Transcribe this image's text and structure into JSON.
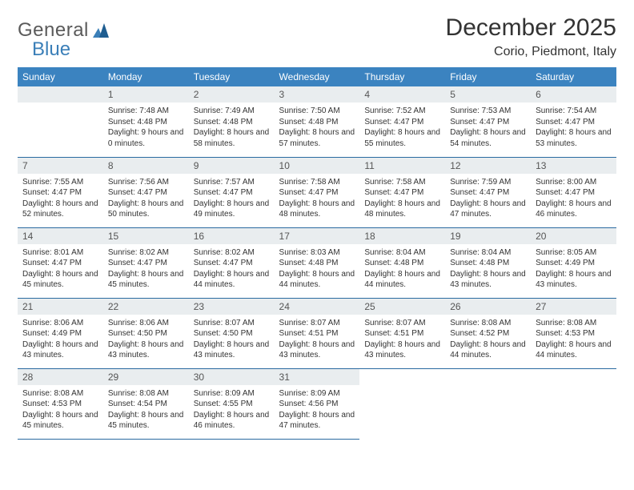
{
  "logo": {
    "general": "General",
    "blue": "Blue"
  },
  "title": "December 2025",
  "location": "Corio, Piedmont, Italy",
  "header_bg": "#3b83c0",
  "header_fg": "#ffffff",
  "daynum_bg": "#e9edef",
  "rule_color": "#2a6aa0",
  "weekdays": [
    "Sunday",
    "Monday",
    "Tuesday",
    "Wednesday",
    "Thursday",
    "Friday",
    "Saturday"
  ],
  "first_weekday_index": 1,
  "days": [
    {
      "n": 1,
      "sunrise": "7:48 AM",
      "sunset": "4:48 PM",
      "daylight": "9 hours and 0 minutes."
    },
    {
      "n": 2,
      "sunrise": "7:49 AM",
      "sunset": "4:48 PM",
      "daylight": "8 hours and 58 minutes."
    },
    {
      "n": 3,
      "sunrise": "7:50 AM",
      "sunset": "4:48 PM",
      "daylight": "8 hours and 57 minutes."
    },
    {
      "n": 4,
      "sunrise": "7:52 AM",
      "sunset": "4:47 PM",
      "daylight": "8 hours and 55 minutes."
    },
    {
      "n": 5,
      "sunrise": "7:53 AM",
      "sunset": "4:47 PM",
      "daylight": "8 hours and 54 minutes."
    },
    {
      "n": 6,
      "sunrise": "7:54 AM",
      "sunset": "4:47 PM",
      "daylight": "8 hours and 53 minutes."
    },
    {
      "n": 7,
      "sunrise": "7:55 AM",
      "sunset": "4:47 PM",
      "daylight": "8 hours and 52 minutes."
    },
    {
      "n": 8,
      "sunrise": "7:56 AM",
      "sunset": "4:47 PM",
      "daylight": "8 hours and 50 minutes."
    },
    {
      "n": 9,
      "sunrise": "7:57 AM",
      "sunset": "4:47 PM",
      "daylight": "8 hours and 49 minutes."
    },
    {
      "n": 10,
      "sunrise": "7:58 AM",
      "sunset": "4:47 PM",
      "daylight": "8 hours and 48 minutes."
    },
    {
      "n": 11,
      "sunrise": "7:58 AM",
      "sunset": "4:47 PM",
      "daylight": "8 hours and 48 minutes."
    },
    {
      "n": 12,
      "sunrise": "7:59 AM",
      "sunset": "4:47 PM",
      "daylight": "8 hours and 47 minutes."
    },
    {
      "n": 13,
      "sunrise": "8:00 AM",
      "sunset": "4:47 PM",
      "daylight": "8 hours and 46 minutes."
    },
    {
      "n": 14,
      "sunrise": "8:01 AM",
      "sunset": "4:47 PM",
      "daylight": "8 hours and 45 minutes."
    },
    {
      "n": 15,
      "sunrise": "8:02 AM",
      "sunset": "4:47 PM",
      "daylight": "8 hours and 45 minutes."
    },
    {
      "n": 16,
      "sunrise": "8:02 AM",
      "sunset": "4:47 PM",
      "daylight": "8 hours and 44 minutes."
    },
    {
      "n": 17,
      "sunrise": "8:03 AM",
      "sunset": "4:48 PM",
      "daylight": "8 hours and 44 minutes."
    },
    {
      "n": 18,
      "sunrise": "8:04 AM",
      "sunset": "4:48 PM",
      "daylight": "8 hours and 44 minutes."
    },
    {
      "n": 19,
      "sunrise": "8:04 AM",
      "sunset": "4:48 PM",
      "daylight": "8 hours and 43 minutes."
    },
    {
      "n": 20,
      "sunrise": "8:05 AM",
      "sunset": "4:49 PM",
      "daylight": "8 hours and 43 minutes."
    },
    {
      "n": 21,
      "sunrise": "8:06 AM",
      "sunset": "4:49 PM",
      "daylight": "8 hours and 43 minutes."
    },
    {
      "n": 22,
      "sunrise": "8:06 AM",
      "sunset": "4:50 PM",
      "daylight": "8 hours and 43 minutes."
    },
    {
      "n": 23,
      "sunrise": "8:07 AM",
      "sunset": "4:50 PM",
      "daylight": "8 hours and 43 minutes."
    },
    {
      "n": 24,
      "sunrise": "8:07 AM",
      "sunset": "4:51 PM",
      "daylight": "8 hours and 43 minutes."
    },
    {
      "n": 25,
      "sunrise": "8:07 AM",
      "sunset": "4:51 PM",
      "daylight": "8 hours and 43 minutes."
    },
    {
      "n": 26,
      "sunrise": "8:08 AM",
      "sunset": "4:52 PM",
      "daylight": "8 hours and 44 minutes."
    },
    {
      "n": 27,
      "sunrise": "8:08 AM",
      "sunset": "4:53 PM",
      "daylight": "8 hours and 44 minutes."
    },
    {
      "n": 28,
      "sunrise": "8:08 AM",
      "sunset": "4:53 PM",
      "daylight": "8 hours and 45 minutes."
    },
    {
      "n": 29,
      "sunrise": "8:08 AM",
      "sunset": "4:54 PM",
      "daylight": "8 hours and 45 minutes."
    },
    {
      "n": 30,
      "sunrise": "8:09 AM",
      "sunset": "4:55 PM",
      "daylight": "8 hours and 46 minutes."
    },
    {
      "n": 31,
      "sunrise": "8:09 AM",
      "sunset": "4:56 PM",
      "daylight": "8 hours and 47 minutes."
    }
  ],
  "labels": {
    "sunrise": "Sunrise:",
    "sunset": "Sunset:",
    "daylight": "Daylight:"
  }
}
